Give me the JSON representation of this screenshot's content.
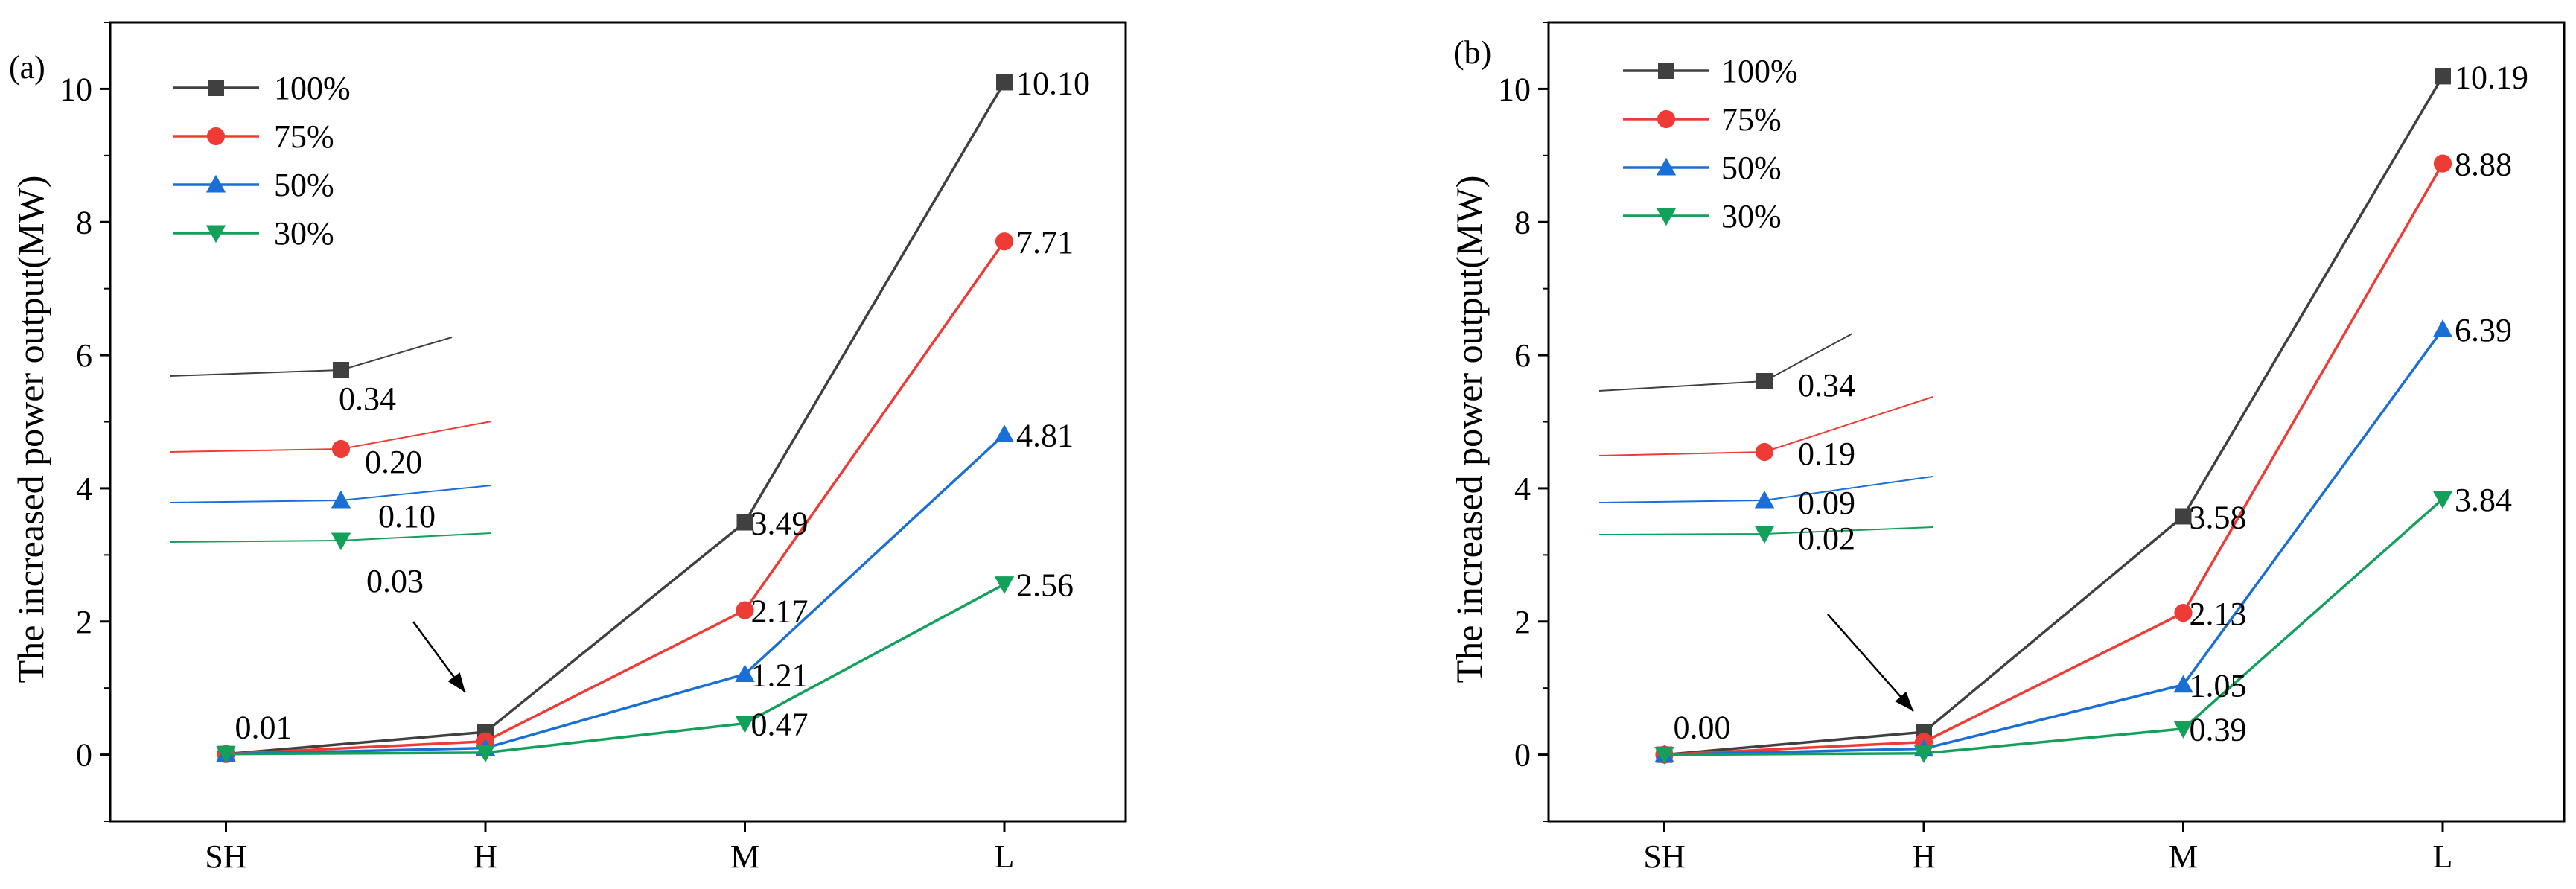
{
  "chart_data": [
    {
      "type": "line",
      "panel_label": "(a)",
      "ylabel": "The increased power output(MW)",
      "xlabel": "",
      "categories": [
        "SH",
        "H",
        "M",
        "L"
      ],
      "ylim": [
        -1,
        11
      ],
      "yticks": [
        0,
        2,
        4,
        6,
        8,
        10
      ],
      "series": [
        {
          "name": "100%",
          "color": "#404040",
          "marker": "square",
          "values": [
            0.01,
            0.34,
            3.49,
            10.1
          ]
        },
        {
          "name": "75%",
          "color": "#ef3b36",
          "marker": "circle",
          "values": [
            0.01,
            0.2,
            2.17,
            7.71
          ]
        },
        {
          "name": "50%",
          "color": "#1a6fd6",
          "marker": "triangle-up",
          "values": [
            0.01,
            0.1,
            1.21,
            4.81
          ]
        },
        {
          "name": "30%",
          "color": "#12a05a",
          "marker": "triangle-down",
          "values": [
            0.01,
            0.03,
            0.47,
            2.56
          ]
        }
      ],
      "end_labels": {
        "M": [
          "3.49",
          "2.17",
          "1.21",
          "0.47"
        ],
        "L": [
          "10.10",
          "7.71",
          "4.81",
          "2.56"
        ]
      },
      "sh_label": "0.01",
      "inset_labels": [
        "0.34",
        "0.20",
        "0.10",
        "0.03"
      ]
    },
    {
      "type": "line",
      "panel_label": "(b)",
      "ylabel": "The increased power output(MW)",
      "xlabel": "",
      "categories": [
        "SH",
        "H",
        "M",
        "L"
      ],
      "ylim": [
        -1,
        11
      ],
      "yticks": [
        0,
        2,
        4,
        6,
        8,
        10
      ],
      "series": [
        {
          "name": "100%",
          "color": "#404040",
          "marker": "square",
          "values": [
            0.0,
            0.34,
            3.58,
            10.19
          ]
        },
        {
          "name": "75%",
          "color": "#ef3b36",
          "marker": "circle",
          "values": [
            0.0,
            0.19,
            2.13,
            8.88
          ]
        },
        {
          "name": "50%",
          "color": "#1a6fd6",
          "marker": "triangle-up",
          "values": [
            0.0,
            0.09,
            1.05,
            6.39
          ]
        },
        {
          "name": "30%",
          "color": "#12a05a",
          "marker": "triangle-down",
          "values": [
            0.0,
            0.02,
            0.39,
            3.84
          ]
        }
      ],
      "end_labels": {
        "M": [
          "3.58",
          "2.13",
          "1.05",
          "0.39"
        ],
        "L": [
          "10.19",
          "8.88",
          "6.39",
          "3.84"
        ]
      },
      "sh_label": "0.00",
      "inset_labels": [
        "0.34",
        "0.19",
        "0.09",
        "0.02"
      ]
    }
  ]
}
